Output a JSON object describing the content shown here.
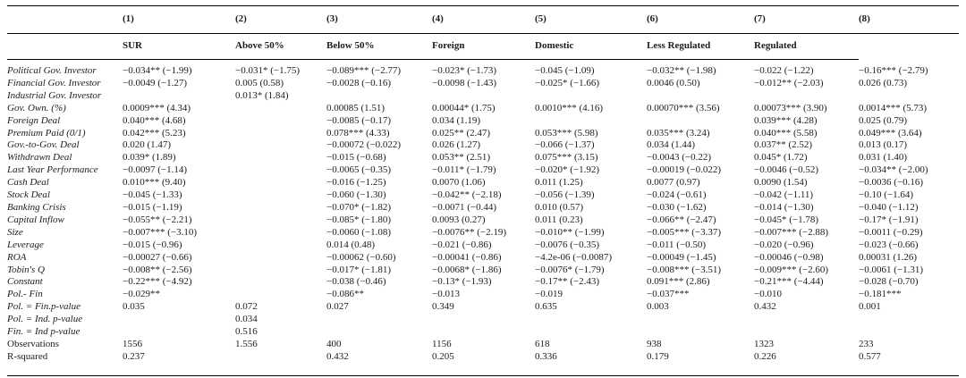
{
  "table": {
    "column_numbers": [
      "(1)",
      "(2)",
      "(3)",
      "(4)",
      "(5)",
      "(6)",
      "(7)",
      "(8)"
    ],
    "column_names": [
      "",
      "SUR",
      "Above 50%",
      "Below 50%",
      "Foreign",
      "Domestic",
      "Less Regulated",
      "Regulated"
    ],
    "rows": [
      {
        "label": "Political Gov. Investor",
        "italic": true,
        "cells": [
          "−0.034** (−1.99)",
          "−0.031* (−1.75)",
          "−0.089*** (−2.77)",
          "−0.023* (−1.73)",
          "−0.045 (−1.09)",
          "−0.032** (−1.98)",
          "−0.022 (−1.22)",
          "−0.16*** (−2.79)"
        ]
      },
      {
        "label": "Financial Gov. Investor",
        "italic": true,
        "cells": [
          "−0.0049 (−1.27)",
          "0.005 (0.58)",
          "−0.0028 (−0.16)",
          "−0.0098 (−1.43)",
          "−0.025* (−1.66)",
          "0.0046 (0.50)",
          "−0.012** (−2.03)",
          "0.026 (0.73)"
        ]
      },
      {
        "label": "Industrial Gov. Investor",
        "italic": true,
        "cells": [
          "",
          "0.013* (1.84)",
          "",
          "",
          "",
          "",
          "",
          ""
        ]
      },
      {
        "label": "Gov. Own. (%)",
        "italic": true,
        "cells": [
          "0.0009*** (4.34)",
          "",
          "0.00085 (1.51)",
          "0.00044* (1.75)",
          "0.0010*** (4.16)",
          "0.00070*** (3.56)",
          "0.00073*** (3.90)",
          "0.0014*** (5.73)"
        ]
      },
      {
        "label": "Foreign Deal",
        "italic": true,
        "cells": [
          "0.040*** (4.68)",
          "",
          "−0.0085 (−0.17)",
          "0.034 (1.19)",
          "",
          "",
          "0.039*** (4.28)",
          "0.025 (0.79)"
        ]
      },
      {
        "label": "Premium Paid (0/1)",
        "italic": true,
        "cells": [
          "0.042*** (5.23)",
          "",
          "0.078*** (4.33)",
          "0.025** (2.47)",
          "0.053*** (5.98)",
          "0.035*** (3.24)",
          "0.040*** (5.58)",
          "0.049*** (3.64)"
        ]
      },
      {
        "label": "Gov.-to-Gov. Deal",
        "italic": true,
        "cells": [
          "0.020 (1.47)",
          "",
          "−0.00072 (−0.022)",
          "0.026 (1.27)",
          "−0.066 (−1.37)",
          "0.034 (1.44)",
          "0.037** (2.52)",
          "0.013 (0.17)"
        ]
      },
      {
        "label": "Withdrawn Deal",
        "italic": true,
        "cells": [
          "0.039* (1.89)",
          "",
          "−0.015 (−0.68)",
          "0.053** (2.51)",
          "0.075*** (3.15)",
          "−0.0043 (−0.22)",
          "0.045* (1.72)",
          "0.031 (1.40)"
        ]
      },
      {
        "label": "Last Year Performance",
        "italic": true,
        "cells": [
          "−0.0097 (−1.14)",
          "",
          "−0.0065 (−0.35)",
          "−0.011* (−1.79)",
          "−0.020* (−1.92)",
          "−0.00019 (−0.022)",
          "−0.0046 (−0.52)",
          "−0.034** (−2.00)"
        ]
      },
      {
        "label": "Cash Deal",
        "italic": true,
        "cells": [
          "0.010*** (9.40)",
          "",
          "−0.016 (−1.25)",
          "0.0070 (1.06)",
          "0.011 (1.25)",
          "0.0077 (0.97)",
          "0.0090 (1.54)",
          "−0.0036 (−0.16)"
        ]
      },
      {
        "label": "Stock Deal",
        "italic": true,
        "cells": [
          "−0.045 (−1.33)",
          "",
          "−0.060 (−1.30)",
          "−0.042** (−2.18)",
          "−0.056 (−1.39)",
          "−0.024 (−0.61)",
          "−0.042 (−1.11)",
          "−0.10 (−1.64)"
        ]
      },
      {
        "label": "Banking Crisis",
        "italic": true,
        "cells": [
          "−0.015 (−1.19)",
          "",
          "−0.070* (−1.82)",
          "−0.0071 (−0.44)",
          "0.010 (0.57)",
          "−0.030 (−1.62)",
          "−0.014 (−1.30)",
          "−0.040 (−1.12)"
        ]
      },
      {
        "label": "Capital Inflow",
        "italic": true,
        "cells": [
          "−0.055** (−2.21)",
          "",
          "−0.085* (−1.80)",
          "0.0093 (0.27)",
          "0.011 (0.23)",
          "−0.066** (−2.47)",
          "−0.045* (−1.78)",
          "−0.17* (−1.91)"
        ]
      },
      {
        "label": "Size",
        "italic": true,
        "cells": [
          "−0.007*** (−3.10)",
          "",
          "−0.0060 (−1.08)",
          "−0.0076** (−2.19)",
          "−0.010** (−1.99)",
          "−0.005*** (−3.37)",
          "−0.007*** (−2.88)",
          "−0.0011 (−0.29)"
        ]
      },
      {
        "label": "Leverage",
        "italic": true,
        "cells": [
          "−0.015 (−0.96)",
          "",
          "0.014 (0.48)",
          "−0.021 (−0.86)",
          "−0.0076 (−0.35)",
          "−0.011 (−0.50)",
          "−0.020 (−0.96)",
          "−0.023 (−0.66)"
        ]
      },
      {
        "label": "ROA",
        "italic": true,
        "cells": [
          "−0.00027 (−0.66)",
          "",
          "−0.00062 (−0.60)",
          "−0.00041 (−0.86)",
          "−4.2e-06 (−0.0087)",
          "−0.00049 (−1.45)",
          "−0.00046 (−0.98)",
          "0.00031 (1.26)"
        ]
      },
      {
        "label": "Tobin's Q",
        "italic": true,
        "cells": [
          "−0.008** (−2.56)",
          "",
          "−0.017* (−1.81)",
          "−0.0068* (−1.86)",
          "−0.0076* (−1.79)",
          "−0.008*** (−3.51)",
          "−0.009*** (−2.60)",
          "−0.0061 (−1.31)"
        ]
      },
      {
        "label": "Constant",
        "italic": true,
        "cells": [
          "−0.22*** (−4.92)",
          "",
          "−0.038 (−0.46)",
          "−0.13* (−1.93)",
          "−0.17** (−2.43)",
          "0.091*** (2.86)",
          "−0.21*** (−4.44)",
          "−0.028 (−0.70)"
        ]
      },
      {
        "label": "Pol.- Fin",
        "italic": true,
        "cells": [
          "−0.029**",
          "",
          "−0.086**",
          "−0.013",
          "−0.019",
          "−0.037***",
          "−0.010",
          "−0.181***"
        ]
      },
      {
        "label": "Pol. = Fin.p-value",
        "italic": true,
        "cells": [
          "0.035",
          "0.072",
          "0.027",
          "0.349",
          "0.635",
          "0.003",
          "0.432",
          "0.001"
        ]
      },
      {
        "label": "Pol. = Ind. p-value",
        "italic": true,
        "cells": [
          "",
          "0.034",
          "",
          "",
          "",
          "",
          "",
          ""
        ]
      },
      {
        "label": "Fin. = Ind p-value",
        "italic": true,
        "cells": [
          "",
          "0.516",
          "",
          "",
          "",
          "",
          "",
          ""
        ]
      },
      {
        "label": "Observations",
        "italic": false,
        "cells": [
          "1556",
          "1.556",
          "400",
          "1156",
          "618",
          "938",
          "1323",
          "233"
        ]
      },
      {
        "label": "R-squared",
        "italic": false,
        "cells": [
          "0.237",
          "",
          "0.432",
          "0.205",
          "0.336",
          "0.179",
          "0.226",
          "0.577"
        ]
      }
    ]
  }
}
